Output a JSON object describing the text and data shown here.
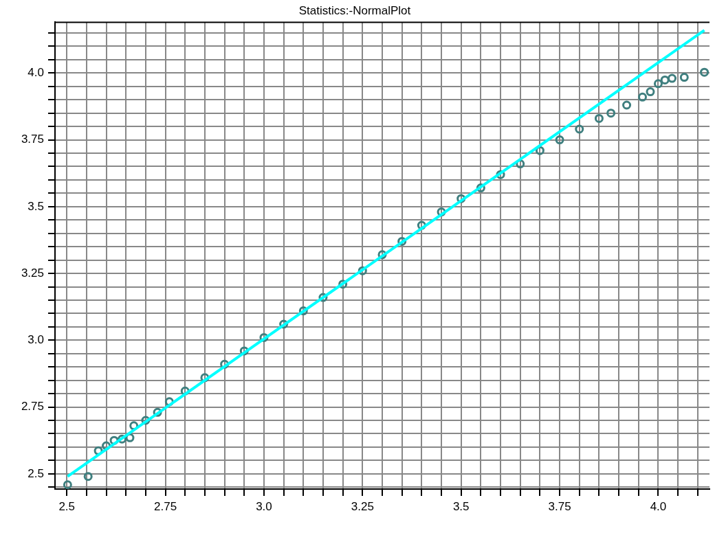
{
  "chart_data": {
    "type": "scatter",
    "title": "Statistics:-NormalPlot",
    "grid": true,
    "legend": false,
    "xlim": [
      2.47,
      4.13
    ],
    "ylim": [
      2.443,
      4.19
    ],
    "xticks": [
      2.5,
      {
        "value": 2.55,
        "label": null
      },
      {
        "value": 2.6,
        "label": null
      },
      {
        "value": 2.65,
        "label": null
      },
      {
        "value": 2.7,
        "label": null
      },
      2.75,
      {
        "value": 2.8,
        "label": null
      },
      {
        "value": 2.85,
        "label": null
      },
      {
        "value": 2.9,
        "label": null
      },
      {
        "value": 2.95,
        "label": null
      },
      {
        "value": 3,
        "label": "3.0"
      },
      {
        "value": 3.05,
        "label": null
      },
      {
        "value": 3.1,
        "label": null
      },
      {
        "value": 3.15,
        "label": null
      },
      {
        "value": 3.2,
        "label": null
      },
      3.25,
      {
        "value": 3.3,
        "label": null
      },
      {
        "value": 3.35,
        "label": null
      },
      {
        "value": 3.4,
        "label": null
      },
      {
        "value": 3.45,
        "label": null
      },
      3.5,
      {
        "value": 3.55,
        "label": null
      },
      {
        "value": 3.6,
        "label": null
      },
      {
        "value": 3.65,
        "label": null
      },
      {
        "value": 3.7,
        "label": null
      },
      3.75,
      {
        "value": 3.8,
        "label": null
      },
      {
        "value": 3.85,
        "label": null
      },
      {
        "value": 3.9,
        "label": null
      },
      {
        "value": 3.95,
        "label": null
      },
      {
        "value": 4,
        "label": "4.0"
      },
      {
        "value": 4.05,
        "label": null
      },
      {
        "value": 4.1,
        "label": null
      }
    ],
    "yticks": [
      {
        "value": 2.45,
        "label": null
      },
      2.5,
      {
        "value": 2.55,
        "label": null
      },
      {
        "value": 2.6,
        "label": null
      },
      {
        "value": 2.65,
        "label": null
      },
      {
        "value": 2.7,
        "label": null
      },
      2.75,
      {
        "value": 2.8,
        "label": null
      },
      {
        "value": 2.85,
        "label": null
      },
      {
        "value": 2.9,
        "label": null
      },
      {
        "value": 2.95,
        "label": null
      },
      {
        "value": 3,
        "label": "3.0"
      },
      {
        "value": 3.05,
        "label": null
      },
      {
        "value": 3.1,
        "label": null
      },
      {
        "value": 3.15,
        "label": null
      },
      {
        "value": 3.2,
        "label": null
      },
      3.25,
      {
        "value": 3.3,
        "label": null
      },
      {
        "value": 3.35,
        "label": null
      },
      {
        "value": 3.4,
        "label": null
      },
      {
        "value": 3.45,
        "label": null
      },
      3.5,
      {
        "value": 3.55,
        "label": null
      },
      {
        "value": 3.6,
        "label": null
      },
      {
        "value": 3.65,
        "label": null
      },
      {
        "value": 3.7,
        "label": null
      },
      3.75,
      {
        "value": 3.8,
        "label": null
      },
      {
        "value": 3.85,
        "label": null
      },
      {
        "value": 3.9,
        "label": null
      },
      {
        "value": 3.95,
        "label": null
      },
      {
        "value": 4,
        "label": "4.0"
      },
      {
        "value": 4.05,
        "label": null
      },
      {
        "value": 4.1,
        "label": null
      },
      {
        "value": 4.15,
        "label": null
      }
    ],
    "series": [
      {
        "type": "scatter",
        "marker": "circle",
        "color": "#3f7f7f",
        "x": [
          2.502,
          2.554,
          2.58,
          2.6,
          2.62,
          2.64,
          2.66,
          2.67,
          2.7,
          2.73,
          2.76,
          2.8,
          2.85,
          2.9,
          2.95,
          3.0,
          3.05,
          3.1,
          3.15,
          3.2,
          3.25,
          3.3,
          3.35,
          3.4,
          3.45,
          3.5,
          3.55,
          3.6,
          3.65,
          3.7,
          3.75,
          3.8,
          3.85,
          3.88,
          3.92,
          3.96,
          3.98,
          4.0,
          4.017,
          4.035,
          4.066,
          4.117
        ],
        "values": [
          2.459,
          2.49,
          2.586,
          2.605,
          2.625,
          2.63,
          2.635,
          2.68,
          2.7,
          2.73,
          2.77,
          2.81,
          2.86,
          2.91,
          2.96,
          3.01,
          3.06,
          3.11,
          3.16,
          3.21,
          3.26,
          3.32,
          3.37,
          3.43,
          3.48,
          3.53,
          3.57,
          3.62,
          3.66,
          3.71,
          3.75,
          3.79,
          3.83,
          3.85,
          3.88,
          3.91,
          3.93,
          3.96,
          3.974,
          3.98,
          3.984,
          4.003
        ]
      },
      {
        "type": "line",
        "marker": "none",
        "color": "#00ffff",
        "x": [
          2.502,
          4.117
        ],
        "values": [
          2.49,
          4.16
        ]
      }
    ]
  }
}
